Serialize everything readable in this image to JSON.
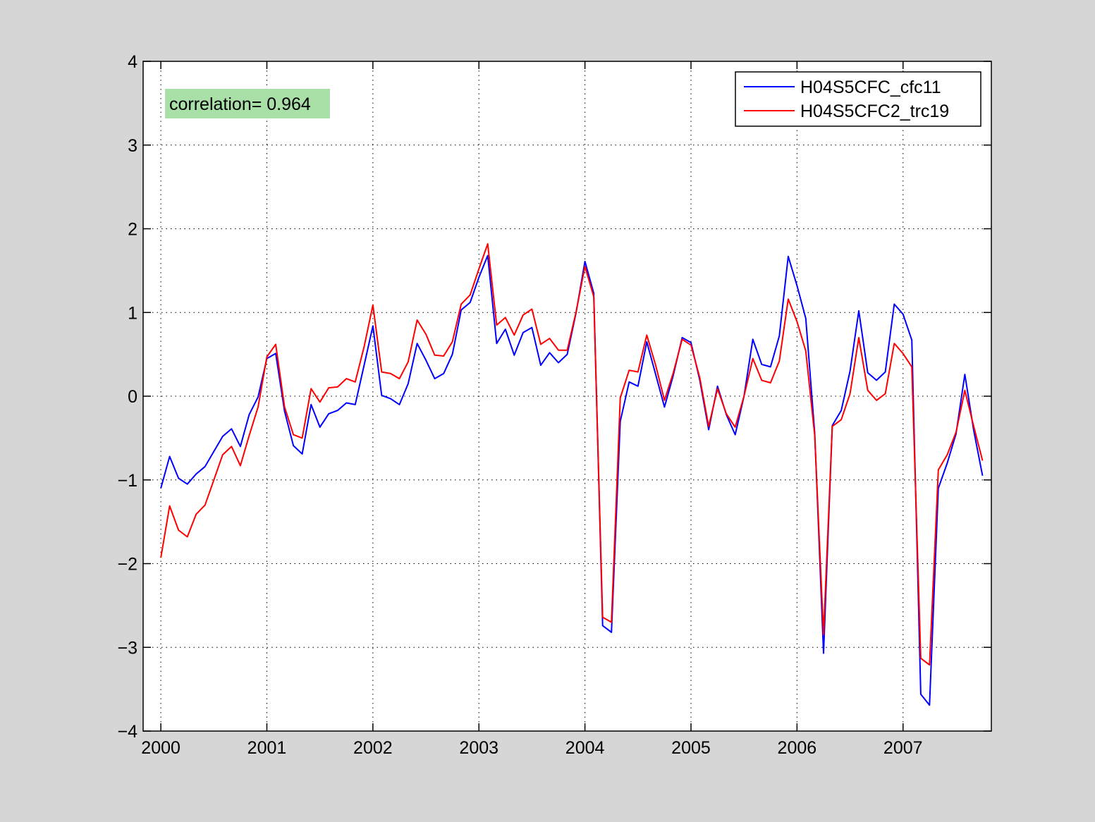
{
  "chart_data": {
    "type": "line",
    "x_unit": "decimal year",
    "xlim": [
      1999.833,
      2007.833
    ],
    "ylim": [
      -4,
      4
    ],
    "grid": true,
    "legend_placement": "top-right",
    "annotation": "correlation= 0.964",
    "x_ticks": [
      2000,
      2001,
      2002,
      2003,
      2004,
      2005,
      2006,
      2007
    ],
    "x_tick_labels": [
      "2000",
      "2001",
      "2002",
      "2003",
      "2004",
      "2005",
      "2006",
      "2007"
    ],
    "y_ticks": [
      -4,
      -3,
      -2,
      -1,
      0,
      1,
      2,
      3,
      4
    ],
    "y_tick_labels": [
      "−4",
      "−3",
      "−2",
      "−1",
      "0",
      "1",
      "2",
      "3",
      "4"
    ],
    "x": [
      2000.0,
      2000.083,
      2000.167,
      2000.25,
      2000.333,
      2000.417,
      2000.5,
      2000.583,
      2000.667,
      2000.75,
      2000.833,
      2000.917,
      2001.0,
      2001.083,
      2001.167,
      2001.25,
      2001.333,
      2001.417,
      2001.5,
      2001.583,
      2001.667,
      2001.75,
      2001.833,
      2001.917,
      2002.0,
      2002.083,
      2002.167,
      2002.25,
      2002.333,
      2002.417,
      2002.5,
      2002.583,
      2002.667,
      2002.75,
      2002.833,
      2002.917,
      2003.0,
      2003.083,
      2003.167,
      2003.25,
      2003.333,
      2003.417,
      2003.5,
      2003.583,
      2003.667,
      2003.75,
      2003.833,
      2003.917,
      2004.0,
      2004.083,
      2004.167,
      2004.25,
      2004.333,
      2004.417,
      2004.5,
      2004.583,
      2004.667,
      2004.75,
      2004.833,
      2004.917,
      2005.0,
      2005.083,
      2005.167,
      2005.25,
      2005.333,
      2005.417,
      2005.5,
      2005.583,
      2005.667,
      2005.75,
      2005.833,
      2005.917,
      2006.0,
      2006.083,
      2006.167,
      2006.25,
      2006.333,
      2006.417,
      2006.5,
      2006.583,
      2006.667,
      2006.75,
      2006.833,
      2006.917,
      2007.0,
      2007.083,
      2007.167,
      2007.25,
      2007.333,
      2007.417,
      2007.5,
      2007.583,
      2007.667,
      2007.75
    ],
    "series": [
      {
        "name": "H04S5CFC_cfc11",
        "color": "#0000ff",
        "values": [
          -1.1,
          -0.72,
          -0.98,
          -1.05,
          -0.93,
          -0.84,
          -0.66,
          -0.48,
          -0.39,
          -0.6,
          -0.22,
          -0.01,
          0.45,
          0.51,
          -0.18,
          -0.59,
          -0.69,
          -0.1,
          -0.37,
          -0.21,
          -0.17,
          -0.08,
          -0.1,
          0.37,
          0.84,
          0.01,
          -0.03,
          -0.1,
          0.15,
          0.63,
          0.43,
          0.21,
          0.27,
          0.5,
          1.03,
          1.12,
          1.42,
          1.68,
          0.63,
          0.8,
          0.49,
          0.76,
          0.82,
          0.37,
          0.52,
          0.4,
          0.5,
          1.0,
          1.61,
          1.23,
          -2.74,
          -2.82,
          -0.3,
          0.17,
          0.12,
          0.65,
          0.26,
          -0.13,
          0.25,
          0.7,
          0.64,
          0.19,
          -0.4,
          0.12,
          -0.22,
          -0.46,
          0.0,
          0.68,
          0.38,
          0.35,
          0.72,
          1.67,
          1.32,
          0.93,
          -0.44,
          -3.07,
          -0.35,
          -0.17,
          0.3,
          1.02,
          0.28,
          0.19,
          0.29,
          1.1,
          0.98,
          0.67,
          -3.56,
          -3.69,
          -1.1,
          -0.8,
          -0.45,
          0.26,
          -0.41,
          -0.95
        ]
      },
      {
        "name": "H04S5CFC2_trc19",
        "color": "#ff0000",
        "values": [
          -1.93,
          -1.31,
          -1.6,
          -1.68,
          -1.41,
          -1.3,
          -1.0,
          -0.7,
          -0.6,
          -0.83,
          -0.47,
          -0.13,
          0.47,
          0.62,
          -0.13,
          -0.46,
          -0.5,
          0.09,
          -0.07,
          0.1,
          0.11,
          0.21,
          0.17,
          0.59,
          1.09,
          0.29,
          0.27,
          0.21,
          0.41,
          0.91,
          0.74,
          0.49,
          0.48,
          0.65,
          1.1,
          1.21,
          1.52,
          1.82,
          0.85,
          0.94,
          0.73,
          0.97,
          1.04,
          0.62,
          0.69,
          0.55,
          0.55,
          1.01,
          1.55,
          1.19,
          -2.64,
          -2.7,
          -0.02,
          0.31,
          0.29,
          0.73,
          0.37,
          -0.05,
          0.28,
          0.68,
          0.61,
          0.22,
          -0.36,
          0.09,
          -0.21,
          -0.37,
          0.0,
          0.45,
          0.19,
          0.16,
          0.42,
          1.16,
          0.89,
          0.54,
          -0.47,
          -2.85,
          -0.36,
          -0.28,
          0.03,
          0.7,
          0.07,
          -0.05,
          0.03,
          0.63,
          0.51,
          0.35,
          -3.13,
          -3.21,
          -0.88,
          -0.7,
          -0.43,
          0.07,
          -0.36,
          -0.77
        ]
      }
    ]
  }
}
